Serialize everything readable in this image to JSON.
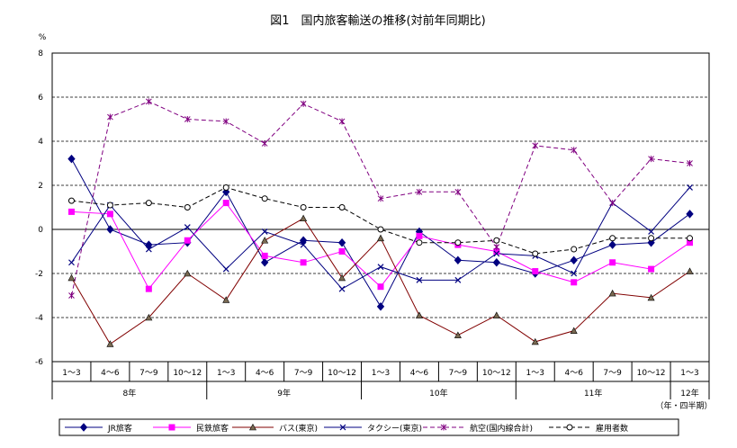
{
  "chart_data": {
    "type": "line",
    "title": "図1　国内旅客輸送の推移(対前年同期比)",
    "ylabel": "%",
    "ylim": [
      -6,
      8
    ],
    "yticks": [
      -6,
      -4,
      -2,
      0,
      2,
      4,
      6,
      8
    ],
    "grid": true,
    "legend_position": "bottom",
    "categories": [
      "1～3",
      "4～6",
      "7～9",
      "10～12",
      "1～3",
      "4～6",
      "7～9",
      "10～12",
      "1～3",
      "4～6",
      "7～9",
      "10～12",
      "1～3",
      "4～6",
      "7～9",
      "10～12",
      "1～3"
    ],
    "year_groups": [
      {
        "label": "8年",
        "count": 4
      },
      {
        "label": "9年",
        "count": 4
      },
      {
        "label": "10年",
        "count": 4
      },
      {
        "label": "11年",
        "count": 4
      },
      {
        "label": "12年",
        "count": 1
      }
    ],
    "x_unit_note": "（年・四半期）",
    "series": [
      {
        "name": "JR旅客",
        "color": "#000080",
        "marker": "diamond",
        "dash": "solid",
        "values": [
          3.2,
          0.0,
          -0.7,
          -0.6,
          1.7,
          -1.5,
          -0.5,
          -0.6,
          -3.5,
          -0.1,
          -1.4,
          -1.5,
          -2.0,
          -1.4,
          -0.7,
          -0.6,
          0.7
        ]
      },
      {
        "name": "民鉄旅客",
        "color": "#ff00ff",
        "marker": "square",
        "dash": "solid",
        "values": [
          0.8,
          0.7,
          -2.7,
          -0.5,
          1.2,
          -1.2,
          -1.5,
          -1.0,
          -2.6,
          -0.3,
          -0.7,
          -1.0,
          -1.9,
          -2.4,
          -1.5,
          -1.8,
          -0.6
        ]
      },
      {
        "name": "バス(東京)",
        "color": "#800000",
        "marker": "triangle",
        "dash": "solid",
        "values": [
          -2.2,
          -5.2,
          -4.0,
          -2.0,
          -3.2,
          -0.5,
          0.5,
          -2.2,
          -0.4,
          -3.9,
          -4.8,
          -3.9,
          -5.1,
          -4.6,
          -2.9,
          -3.1,
          -1.9
        ]
      },
      {
        "name": "タクシー(東京)",
        "color": "#000080",
        "marker": "x",
        "dash": "solid",
        "values": [
          -1.5,
          1.1,
          -0.9,
          0.1,
          -1.8,
          -0.1,
          -0.7,
          -2.7,
          -1.7,
          -2.3,
          -2.3,
          -1.1,
          -1.2,
          -2.0,
          1.2,
          -0.1,
          1.9
        ]
      },
      {
        "name": "航空(国内線合計)",
        "color": "#800080",
        "marker": "star",
        "dash": "dashed",
        "values": [
          -3.0,
          5.1,
          5.8,
          5.0,
          4.9,
          3.9,
          5.7,
          4.9,
          1.4,
          1.7,
          1.7,
          -0.8,
          3.8,
          3.6,
          1.2,
          3.2,
          3.0
        ]
      },
      {
        "name": "雇用者数",
        "color": "#000000",
        "marker": "circle",
        "dash": "dashed",
        "values": [
          1.3,
          1.1,
          1.2,
          1.0,
          1.9,
          1.4,
          1.0,
          1.0,
          0.0,
          -0.6,
          -0.6,
          -0.5,
          -1.1,
          -0.9,
          -0.4,
          -0.4,
          -0.4
        ]
      }
    ]
  }
}
